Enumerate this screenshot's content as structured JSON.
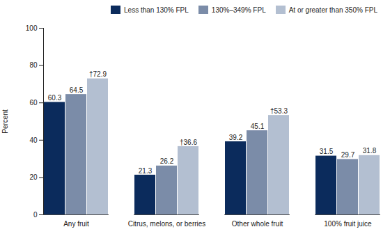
{
  "chart_data": {
    "type": "bar",
    "categories": [
      "Any fruit",
      "Citrus, melons, or berries",
      "Other whole fruit",
      "100% fruit juice"
    ],
    "series": [
      {
        "name": "Less than 130% FPL",
        "color": "#0b2b5c",
        "values": [
          60.3,
          21.3,
          39.2,
          31.5
        ]
      },
      {
        "name": "130%–349% FPL",
        "color": "#7b8ca8",
        "values": [
          64.5,
          26.2,
          45.1,
          29.7
        ]
      },
      {
        "name": "At or greater than 350% FPL",
        "color": "#b3bfd1",
        "values": [
          72.9,
          36.6,
          53.3,
          31.8
        ],
        "value_labels": [
          "†72.9",
          "†36.6",
          "†53.3",
          "31.8"
        ]
      }
    ],
    "y_label": "Percent",
    "ylim": [
      0,
      100
    ],
    "yticks": [
      0,
      20,
      40,
      60,
      80,
      100
    ],
    "data_labels": true,
    "legend": "top",
    "grid": false
  }
}
